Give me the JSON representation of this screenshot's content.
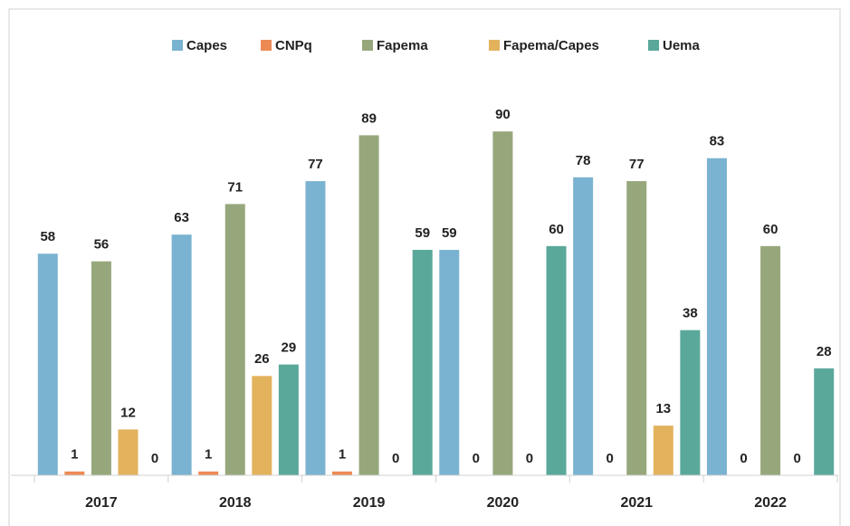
{
  "chart_data": {
    "type": "bar",
    "categories": [
      "2017",
      "2018",
      "2019",
      "2020",
      "2021",
      "2022"
    ],
    "series": [
      {
        "name": "Capes",
        "color": "#7ab3d1",
        "values": [
          58,
          63,
          77,
          59,
          78,
          83
        ]
      },
      {
        "name": "CNPq",
        "color": "#ed8a54",
        "values": [
          1,
          1,
          1,
          0,
          0,
          0
        ]
      },
      {
        "name": "Fapema",
        "color": "#97a77c",
        "values": [
          56,
          71,
          89,
          90,
          77,
          60
        ]
      },
      {
        "name": "Fapema/Capes",
        "color": "#e3b25d",
        "values": [
          12,
          26,
          0,
          0,
          13,
          0
        ]
      },
      {
        "name": "Uema",
        "color": "#5aa89a",
        "values": [
          0,
          29,
          59,
          60,
          38,
          28
        ]
      }
    ],
    "ylim": [
      0,
      100
    ],
    "legend": "top"
  }
}
